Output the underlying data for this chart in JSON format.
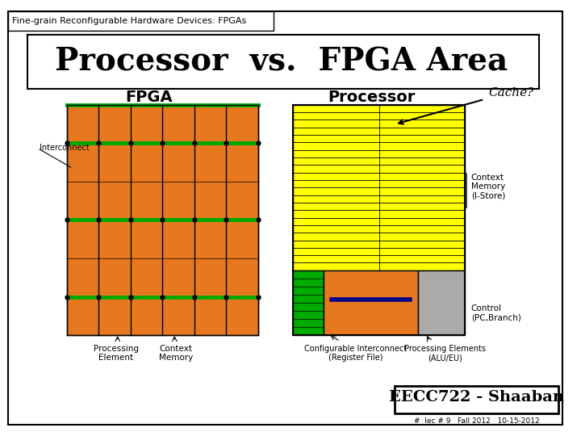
{
  "title": "Processor  vs.  FPGA Area",
  "header": "Fine-grain Reconfigurable Hardware Devices: FPGAs",
  "bg_color": "#ffffff",
  "outer_border_color": "#000000",
  "title_fontsize": 28,
  "fpga_label": "FPGA",
  "processor_label": "Processor",
  "cache_label": "Cache?",
  "interconnect_label": "Interconnect",
  "proc_element_label": "Processing\nElement",
  "context_mem_label": "Context\nMemory",
  "context_memory_right_label": "Context\nMemory\n(I-Store)",
  "control_label": "Control\n(PC,Branch)",
  "configurable_interconnect_label": "Configurable Interconnect\n(Register File)",
  "processing_elements_label": "Processing Elements\n(ALU/EU)",
  "orange_color": "#E87820",
  "green_color": "#00AA00",
  "yellow_color": "#FFFF00",
  "dark_line_color": "#000000",
  "gray_color": "#AAAAAA",
  "dark_blue_color": "#00008B",
  "footer_text": "EECC722 - Shaaban",
  "footer_sub": "#  lec # 9   Fall 2012   10-15-2012"
}
